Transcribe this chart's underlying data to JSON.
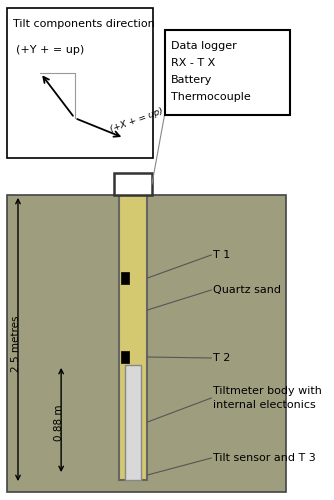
{
  "ground_color": "#9e9e7e",
  "borehole_fill_color": "#d4c870",
  "tiltmeter_body_color": "#d8d8d8",
  "legend_box_lines": [
    "Data logger",
    "RX - T X",
    "Battery",
    "Thermocouple"
  ],
  "t1_label": "T 1",
  "t2_label": "T 2",
  "quartz_label": "Quartz sand",
  "tiltmeter_label": "Tiltmeter body with\ninternal electonics",
  "tilt_sensor_label": "Tilt sensor and T 3",
  "depth_label": "2.5 metres",
  "inner_depth_label": "0.88 m",
  "tilt_title": "Tilt components direction",
  "tilt_y_label": "(+Y + = up)",
  "tilt_x_label": "(+X + = up)"
}
